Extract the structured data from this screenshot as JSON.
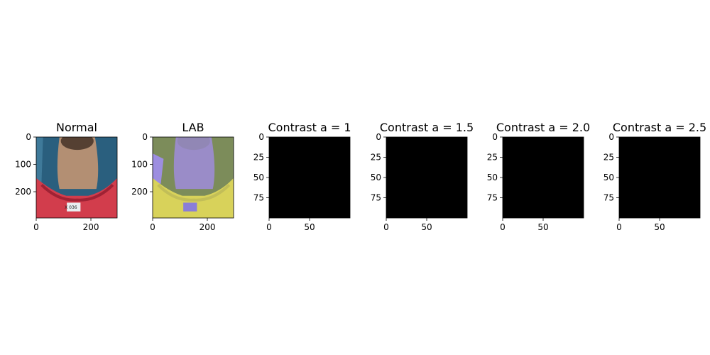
{
  "chart_data": [
    {
      "type": "image",
      "title": "Normal",
      "content": "photo of the back of a neck with red collared shirt and a small white tag",
      "xlim": [
        0,
        296
      ],
      "ylim": [
        296,
        0
      ],
      "xticks": [
        0,
        200
      ],
      "yticks": [
        0,
        100,
        200
      ],
      "xticklabels": [
        "0",
        "200"
      ],
      "yticklabels": [
        "0",
        "100",
        "200"
      ],
      "colors": {
        "bg": "#2a5f7e",
        "skin": "#b38f73",
        "hair": "#3d2c22",
        "shirt": "#d23d4c",
        "shirt_dark": "#9f2234",
        "tag": "#e8eef0",
        "tag_text": "#202020"
      },
      "tag_text": "X 036"
    },
    {
      "type": "image",
      "title": "LAB",
      "content": "same photo converted to LAB color space displayed as RGB",
      "xlim": [
        0,
        296
      ],
      "ylim": [
        296,
        0
      ],
      "xticks": [
        0,
        200
      ],
      "yticks": [
        0,
        100,
        200
      ],
      "xticklabels": [
        "0",
        "200"
      ],
      "yticklabels": [
        "0",
        "100",
        "200"
      ],
      "colors": {
        "bg": "#7c8c5a",
        "skin": "#9a8cc8",
        "hair": "#8f86b0",
        "shirt": "#d8d25a",
        "shirt_dark": "#c2be58",
        "tag": "#8a7ed8",
        "side": "#9d8ee0"
      }
    },
    {
      "type": "image",
      "title": "Contrast a = 1",
      "content": "all black",
      "xlim": [
        0,
        100
      ],
      "ylim": [
        100,
        0
      ],
      "xticks": [
        0,
        50
      ],
      "yticks": [
        0,
        25,
        50,
        75
      ],
      "xticklabels": [
        "0",
        "50"
      ],
      "yticklabels": [
        "0",
        "25",
        "50",
        "75"
      ],
      "colors": {
        "fill": "#000000"
      }
    },
    {
      "type": "image",
      "title": "Contrast a = 1.5",
      "content": "all black",
      "xlim": [
        0,
        100
      ],
      "ylim": [
        100,
        0
      ],
      "xticks": [
        0,
        50
      ],
      "yticks": [
        0,
        25,
        50,
        75
      ],
      "xticklabels": [
        "0",
        "50"
      ],
      "yticklabels": [
        "0",
        "25",
        "50",
        "75"
      ],
      "colors": {
        "fill": "#000000"
      }
    },
    {
      "type": "image",
      "title": "Contrast a = 2.0",
      "content": "all black",
      "xlim": [
        0,
        100
      ],
      "ylim": [
        100,
        0
      ],
      "xticks": [
        0,
        50
      ],
      "yticks": [
        0,
        25,
        50,
        75
      ],
      "xticklabels": [
        "0",
        "50"
      ],
      "yticklabels": [
        "0",
        "25",
        "50",
        "75"
      ],
      "colors": {
        "fill": "#000000"
      }
    },
    {
      "type": "image",
      "title": "Contrast a = 2.5",
      "content": "all black",
      "xlim": [
        0,
        100
      ],
      "ylim": [
        100,
        0
      ],
      "xticks": [
        0,
        50
      ],
      "yticks": [
        0,
        25,
        50,
        75
      ],
      "xticklabels": [
        "0",
        "50"
      ],
      "yticklabels": [
        "0",
        "25",
        "50",
        "75"
      ],
      "colors": {
        "fill": "#000000"
      }
    }
  ]
}
